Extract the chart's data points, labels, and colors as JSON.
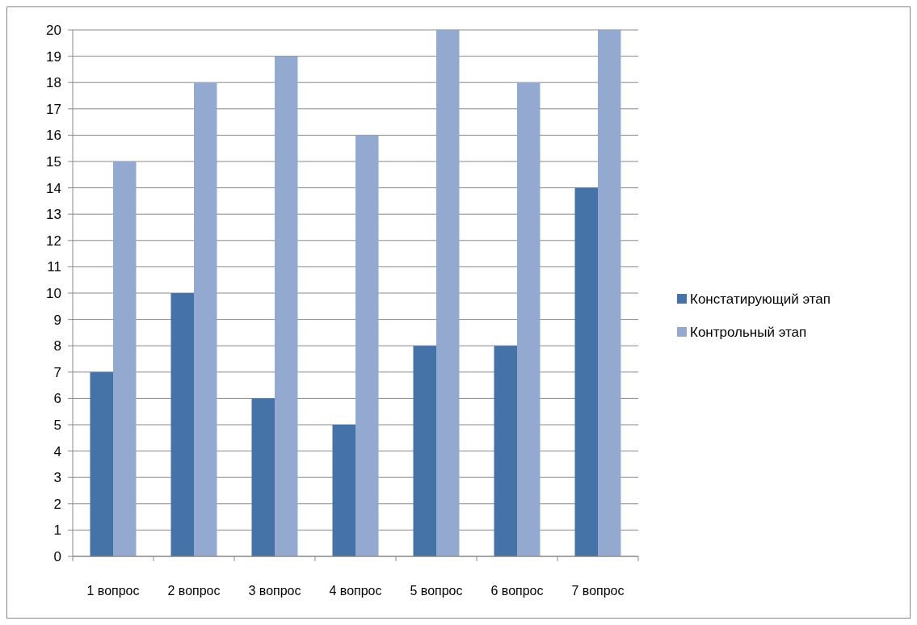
{
  "chart_data": {
    "type": "bar",
    "categories": [
      "1 вопрос",
      "2 вопрос",
      "3 вопрос",
      "4 вопрос",
      "5 вопрос",
      "6 вопрос",
      "7 вопрос"
    ],
    "series": [
      {
        "name": "Констатирующий этап",
        "color": "#4572a7",
        "values": [
          7,
          10,
          6,
          5,
          8,
          8,
          14
        ]
      },
      {
        "name": "Контрольный этап",
        "color": "#93a9cf",
        "values": [
          15,
          18,
          19,
          16,
          20,
          18,
          20
        ]
      }
    ],
    "ylim": [
      0,
      20
    ],
    "yticks": [
      0,
      1,
      2,
      3,
      4,
      5,
      6,
      7,
      8,
      9,
      10,
      11,
      12,
      13,
      14,
      15,
      16,
      17,
      18,
      19,
      20
    ],
    "grid": "y",
    "legend": "right"
  }
}
